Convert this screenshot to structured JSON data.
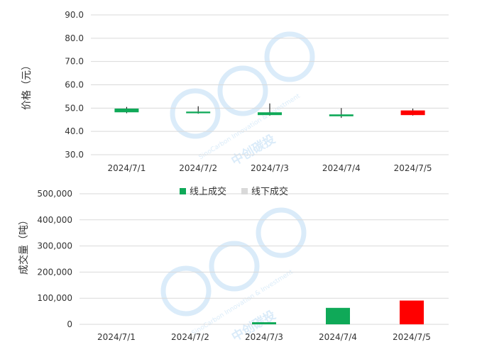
{
  "chart_data": [
    {
      "type": "candlestick",
      "ylabel": "价格（元）",
      "ylim": [
        30,
        90
      ],
      "yticks": [
        "90.0",
        "80.0",
        "70.0",
        "60.0",
        "50.0",
        "40.0",
        "30.0"
      ],
      "ytick_values": [
        90,
        80,
        70,
        60,
        50,
        40,
        30
      ],
      "categories": [
        "2024/7/1",
        "2024/7/2",
        "2024/7/3",
        "2024/7/4",
        "2024/7/5"
      ],
      "candles": [
        {
          "open": 48.2,
          "close": 49.8,
          "high": 50.5,
          "low": 47.8
        },
        {
          "open": 47.8,
          "close": 48.5,
          "high": 50.8,
          "low": 47.6
        },
        {
          "open": 47.0,
          "close": 48.2,
          "high": 52.0,
          "low": 46.8
        },
        {
          "open": 46.5,
          "close": 47.3,
          "high": 50.0,
          "low": 45.8
        },
        {
          "open": 49.0,
          "close": 47.0,
          "high": 49.8,
          "low": 46.8
        }
      ],
      "colors": {
        "up": "#0FA958",
        "down": "#FF0000"
      },
      "grid": true
    },
    {
      "type": "bar",
      "ylabel": "成交量（吨）",
      "ylim": [
        0,
        500000
      ],
      "yticks": [
        "500,000",
        "400,000",
        "300,000",
        "200,000",
        "100,000",
        "0"
      ],
      "ytick_values": [
        500000,
        400000,
        300000,
        200000,
        100000,
        0
      ],
      "categories": [
        "2024/7/1",
        "2024/7/2",
        "2024/7/3",
        "2024/7/4",
        "2024/7/5"
      ],
      "values": [
        0,
        0,
        8000,
        63000,
        91000
      ],
      "bar_colors": [
        "#0FA958",
        "#0FA958",
        "#0FA958",
        "#0FA958",
        "#FF0000"
      ],
      "legend": [
        {
          "name": "线上成交",
          "color": "#0FA958"
        },
        {
          "name": "线下成交",
          "color": "#D9D9D9"
        }
      ],
      "legend_position": "top",
      "grid": true
    }
  ],
  "watermark": {
    "brand": "SinoCarbon Innovation & Investment",
    "cn": "中创碳投",
    "color": "#5AA9E6"
  }
}
